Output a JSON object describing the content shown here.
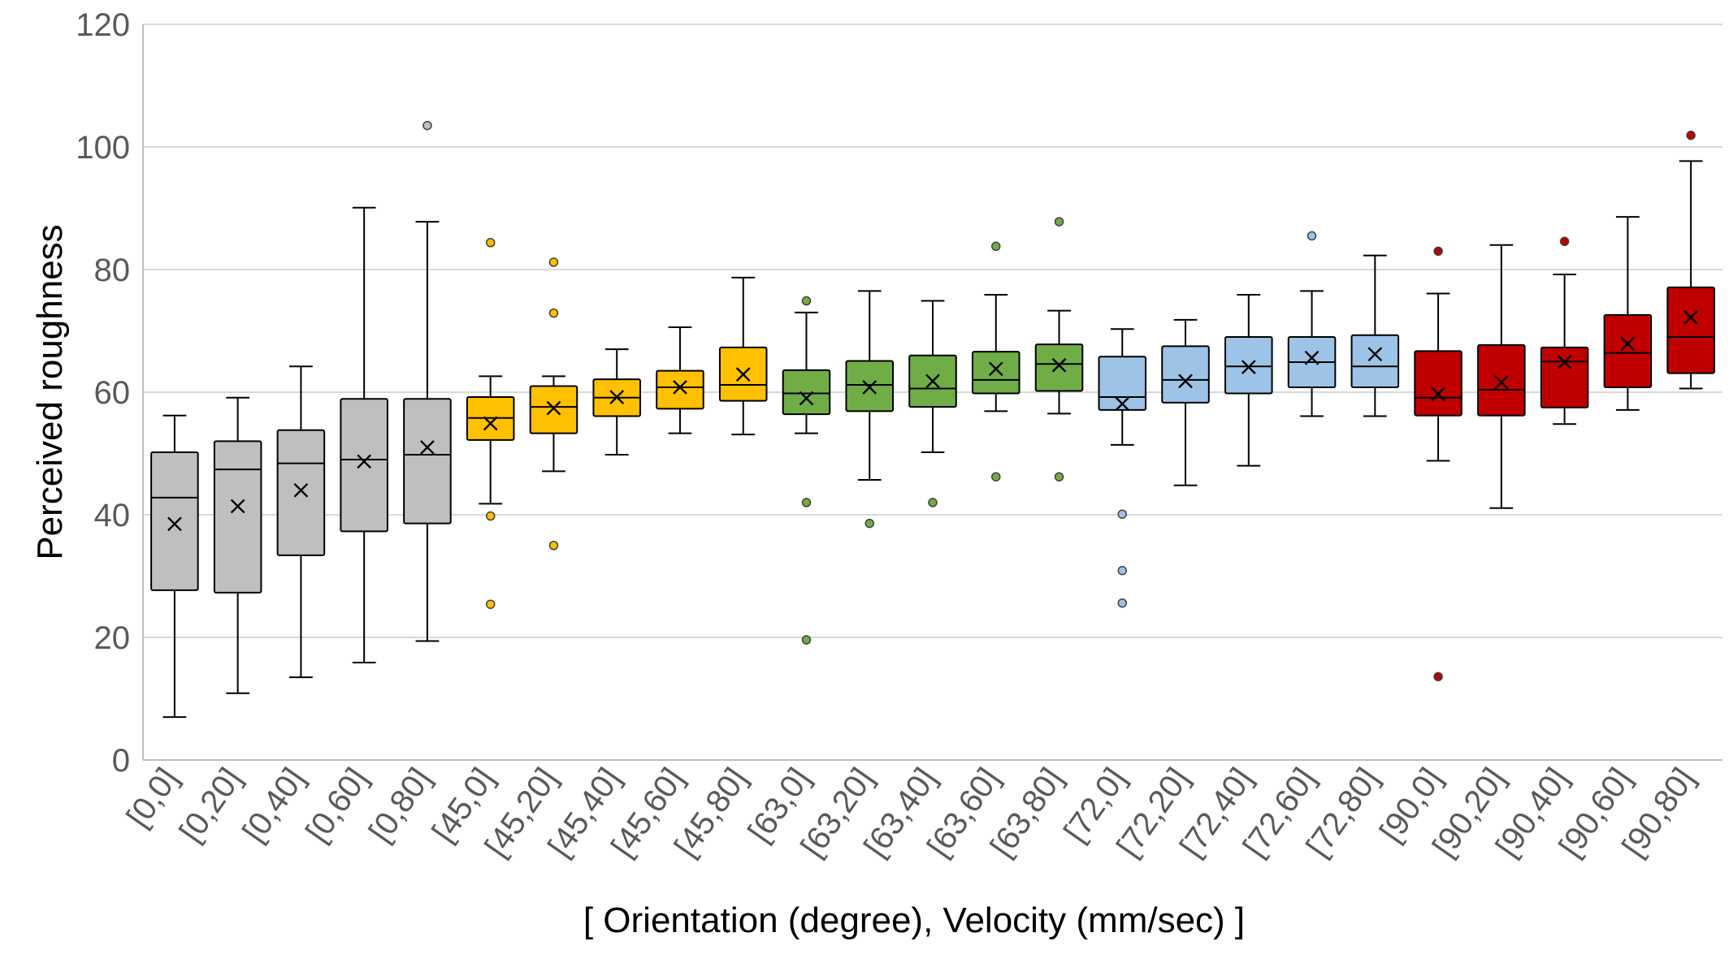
{
  "chart_data": {
    "type": "box",
    "ylabel": "Perceived roughness",
    "xlabel": "[ Orientation (degree), Velocity (mm/sec) ]",
    "ylim": [
      0,
      120
    ],
    "yticks": [
      0,
      20,
      40,
      60,
      80,
      100,
      120
    ],
    "grid": "horizontal",
    "group_colors": {
      "0": "#BFBFBF",
      "45": "#FFC000",
      "63": "#70AD47",
      "72": "#9DC3E6",
      "90": "#C00000"
    },
    "boxes": [
      {
        "category": "[0,0]",
        "group": "0",
        "min": 7,
        "q1": 27.7,
        "median": 42.8,
        "q3": 50.2,
        "max": 56.2,
        "mean": 38.5,
        "outliers": []
      },
      {
        "category": "[0,20]",
        "group": "0",
        "min": 10.9,
        "q1": 27.3,
        "median": 47.4,
        "q3": 52.0,
        "max": 59.1,
        "mean": 41.4,
        "outliers": []
      },
      {
        "category": "[0,40]",
        "group": "0",
        "min": 13.5,
        "q1": 33.4,
        "median": 48.4,
        "q3": 53.8,
        "max": 64.2,
        "mean": 44.0,
        "outliers": []
      },
      {
        "category": "[0,60]",
        "group": "0",
        "min": 15.9,
        "q1": 37.3,
        "median": 49.0,
        "q3": 58.9,
        "max": 90.1,
        "mean": 48.7,
        "outliers": []
      },
      {
        "category": "[0,80]",
        "group": "0",
        "min": 19.4,
        "q1": 38.6,
        "median": 49.8,
        "q3": 58.9,
        "max": 87.8,
        "mean": 51.0,
        "outliers": [
          103.5
        ]
      },
      {
        "category": "[45,0]",
        "group": "45",
        "min": 41.8,
        "q1": 52.2,
        "median": 55.8,
        "q3": 59.2,
        "max": 62.6,
        "mean": 54.9,
        "outliers": [
          84.4,
          39.8,
          25.4
        ]
      },
      {
        "category": "[45,20]",
        "group": "45",
        "min": 47.1,
        "q1": 53.3,
        "median": 57.6,
        "q3": 61.0,
        "max": 62.6,
        "mean": 57.4,
        "outliers": [
          81.2,
          72.9,
          35.0
        ]
      },
      {
        "category": "[45,40]",
        "group": "45",
        "min": 49.8,
        "q1": 56.1,
        "median": 59.1,
        "q3": 62.1,
        "max": 67.0,
        "mean": 59.2,
        "outliers": []
      },
      {
        "category": "[45,60]",
        "group": "45",
        "min": 53.3,
        "q1": 57.3,
        "median": 60.8,
        "q3": 63.5,
        "max": 70.6,
        "mean": 60.8,
        "outliers": []
      },
      {
        "category": "[45,80]",
        "group": "45",
        "min": 53.1,
        "q1": 58.6,
        "median": 61.2,
        "q3": 67.3,
        "max": 78.7,
        "mean": 62.9,
        "outliers": []
      },
      {
        "category": "[63,0]",
        "group": "63",
        "min": 53.3,
        "q1": 56.4,
        "median": 59.8,
        "q3": 63.6,
        "max": 73.0,
        "mean": 59.0,
        "outliers": [
          74.9,
          42.0,
          19.6
        ]
      },
      {
        "category": "[63,20]",
        "group": "63",
        "min": 45.7,
        "q1": 56.9,
        "median": 61.2,
        "q3": 65.1,
        "max": 76.5,
        "mean": 60.8,
        "outliers": [
          38.6
        ]
      },
      {
        "category": "[63,40]",
        "group": "63",
        "min": 50.2,
        "q1": 57.6,
        "median": 60.6,
        "q3": 66.0,
        "max": 74.9,
        "mean": 61.8,
        "outliers": [
          42.0
        ]
      },
      {
        "category": "[63,60]",
        "group": "63",
        "min": 56.9,
        "q1": 59.8,
        "median": 62.0,
        "q3": 66.6,
        "max": 75.9,
        "mean": 63.8,
        "outliers": [
          83.8,
          46.2
        ]
      },
      {
        "category": "[63,80]",
        "group": "63",
        "min": 56.5,
        "q1": 60.2,
        "median": 64.6,
        "q3": 67.8,
        "max": 73.3,
        "mean": 64.4,
        "outliers": [
          87.8,
          46.2
        ]
      },
      {
        "category": "[72,0]",
        "group": "72",
        "min": 51.4,
        "q1": 57.1,
        "median": 59.2,
        "q3": 65.8,
        "max": 70.3,
        "mean": 58.1,
        "outliers": [
          40.1,
          30.9,
          25.6
        ]
      },
      {
        "category": "[72,20]",
        "group": "72",
        "min": 44.8,
        "q1": 58.3,
        "median": 62.0,
        "q3": 67.5,
        "max": 71.8,
        "mean": 61.8,
        "outliers": []
      },
      {
        "category": "[72,40]",
        "group": "72",
        "min": 48.0,
        "q1": 59.8,
        "median": 64.2,
        "q3": 69.0,
        "max": 75.9,
        "mean": 64.1,
        "outliers": []
      },
      {
        "category": "[72,60]",
        "group": "72",
        "min": 56.1,
        "q1": 60.8,
        "median": 64.9,
        "q3": 69.0,
        "max": 76.5,
        "mean": 65.6,
        "outliers": [
          85.5
        ]
      },
      {
        "category": "[72,80]",
        "group": "72",
        "min": 56.1,
        "q1": 60.8,
        "median": 64.2,
        "q3": 69.3,
        "max": 82.3,
        "mean": 66.2,
        "outliers": []
      },
      {
        "category": "[90,0]",
        "group": "90",
        "min": 48.8,
        "q1": 56.2,
        "median": 59.1,
        "q3": 66.7,
        "max": 76.1,
        "mean": 59.7,
        "outliers": [
          83.0,
          13.6
        ]
      },
      {
        "category": "[90,20]",
        "group": "90",
        "min": 41.1,
        "q1": 56.2,
        "median": 60.4,
        "q3": 67.7,
        "max": 84.0,
        "mean": 61.6,
        "outliers": []
      },
      {
        "category": "[90,40]",
        "group": "90",
        "min": 54.8,
        "q1": 57.5,
        "median": 65.0,
        "q3": 67.3,
        "max": 79.2,
        "mean": 64.9,
        "outliers": [
          84.6
        ]
      },
      {
        "category": "[90,60]",
        "group": "90",
        "min": 57.1,
        "q1": 60.8,
        "median": 66.4,
        "q3": 72.6,
        "max": 88.6,
        "mean": 67.9,
        "outliers": []
      },
      {
        "category": "[90,80]",
        "group": "90",
        "min": 60.6,
        "q1": 63.1,
        "median": 69.0,
        "q3": 77.1,
        "max": 97.7,
        "mean": 72.2,
        "outliers": [
          101.9
        ]
      }
    ]
  }
}
